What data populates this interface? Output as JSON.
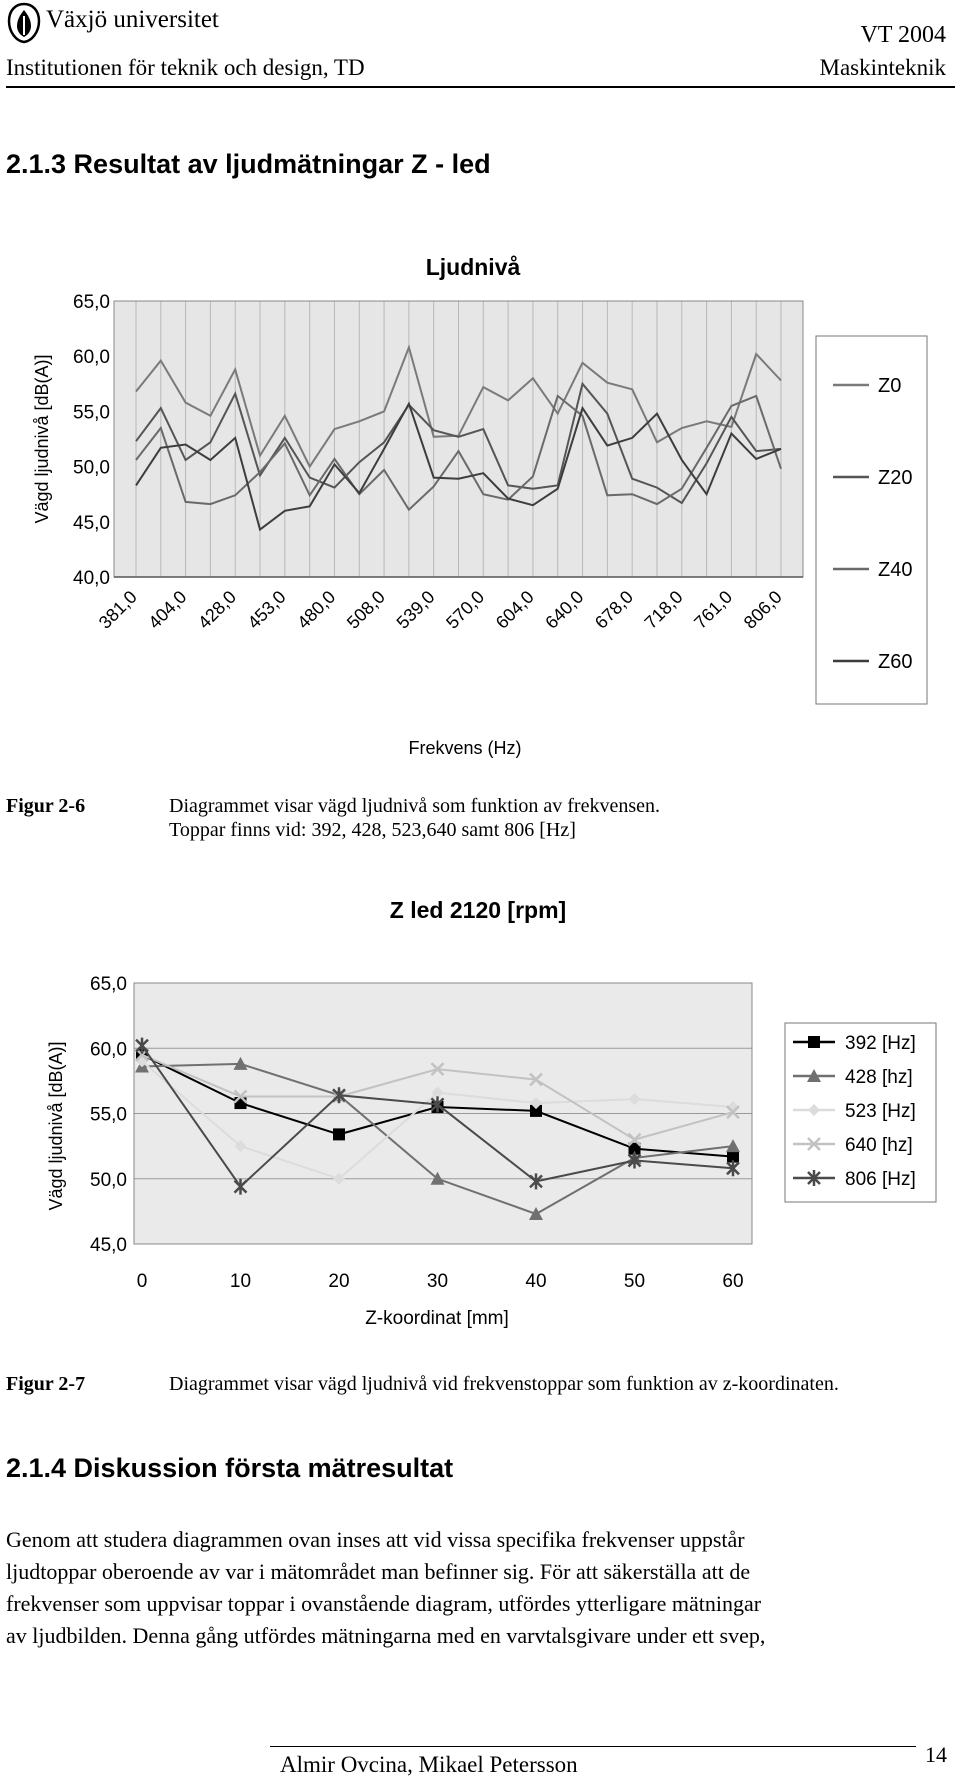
{
  "header": {
    "university": "Växjö universitet",
    "institution": "Institutionen för teknik och design, TD",
    "term": "VT 2004",
    "program": "Maskinteknik"
  },
  "section_result": {
    "title": "2.1.3 Resultat av ljudmätningar Z - led"
  },
  "figure1": {
    "label": "Figur 2-6",
    "caption_line1": "Diagrammet visar vägd ljudnivå som funktion av frekvensen.",
    "caption_line2": "Toppar finns vid: 392, 428, 523,640 samt 806 [Hz]"
  },
  "figure2": {
    "label": "Figur 2-7",
    "caption": "Diagrammet visar vägd ljudnivå vid frekvenstoppar som funktion av z-koordinaten."
  },
  "section_discussion": {
    "title": "2.1.4 Diskussion första mätresultat",
    "paragraph_lines": [
      "Genom att studera diagrammen ovan inses att vid vissa specifika frekvenser uppstår",
      "ljudtoppar oberoende av var i mätområdet man befinner sig. För att säkerställa att de",
      "frekvenser som uppvisar toppar i ovanstående diagram, utfördes ytterligare mätningar",
      "av ljudbilden. Denna gång utfördes mätningarna med en varvtalsgivare under ett svep,"
    ]
  },
  "footer": {
    "authors": "Almir Ovcina, Mikael Petersson",
    "page": "14"
  },
  "chart_data": [
    {
      "type": "line",
      "title": "Ljudnivå",
      "xlabel": "Frekvens (Hz)",
      "ylabel": "Vägd ljudnivå [dB(A)]",
      "ylim": [
        40,
        65
      ],
      "yticks": [
        "40,0",
        "45,0",
        "50,0",
        "55,0",
        "60,0",
        "65,0"
      ],
      "xticks_shown": [
        "381,0",
        "404,0",
        "428,0",
        "453,0",
        "480,0",
        "508,0",
        "539,0",
        "570,0",
        "604,0",
        "640,0",
        "678,0",
        "718,0",
        "761,0",
        "806,0"
      ],
      "x_point_count": 27,
      "grid": "vertical lines",
      "legend_position": "right",
      "series": [
        {
          "name": "Z0",
          "color": "#7a7a7a",
          "values": [
            56.8,
            59.6,
            55.8,
            54.6,
            58.8,
            51.0,
            54.6,
            50.0,
            53.4,
            54.1,
            55.0,
            60.8,
            52.7,
            52.8,
            57.2,
            56.0,
            58.0,
            54.8,
            59.4,
            57.6,
            57.0,
            52.2,
            53.5,
            54.1,
            53.6,
            60.2,
            57.8
          ]
        },
        {
          "name": "Z20",
          "color": "#555555",
          "values": [
            52.3,
            55.3,
            50.6,
            52.2,
            56.6,
            49.2,
            52.6,
            49.0,
            48.1,
            50.4,
            52.2,
            55.6,
            53.3,
            52.7,
            53.4,
            48.3,
            48.0,
            48.3,
            57.5,
            54.8,
            48.9,
            48.1,
            46.7,
            50.3,
            54.5,
            51.4,
            51.6
          ]
        },
        {
          "name": "Z40",
          "color": "#6a6a6a",
          "values": [
            50.6,
            53.5,
            46.8,
            46.6,
            47.4,
            49.5,
            52.1,
            47.4,
            50.7,
            47.5,
            49.7,
            46.1,
            48.2,
            51.4,
            47.5,
            47.0,
            49.1,
            56.4,
            54.6,
            47.4,
            47.5,
            46.6,
            48.0,
            51.7,
            55.5,
            56.4,
            49.8
          ]
        },
        {
          "name": "Z60",
          "color": "#3d3d3d",
          "values": [
            48.3,
            51.7,
            52.0,
            50.6,
            52.6,
            44.3,
            46.0,
            46.4,
            50.2,
            47.6,
            51.6,
            55.7,
            49.0,
            48.9,
            49.4,
            47.1,
            46.5,
            48.0,
            55.3,
            51.9,
            52.6,
            54.8,
            50.6,
            47.5,
            53.0,
            50.7,
            51.6
          ]
        }
      ]
    },
    {
      "type": "line",
      "title": "Z led 2120 [rpm]",
      "xlabel": "Z-koordinat [mm]",
      "ylabel": "Vägd ljudnivå [dB(A)]",
      "x": [
        0,
        10,
        20,
        30,
        40,
        50,
        60
      ],
      "xticks": [
        "0",
        "10",
        "20",
        "30",
        "40",
        "50",
        "60"
      ],
      "yticks": [
        "45,0",
        "50,0",
        "55,0",
        "60,0",
        "65,0"
      ],
      "ylim": [
        45,
        65
      ],
      "grid": "horizontal lines",
      "legend_position": "right",
      "series": [
        {
          "name": "392 [Hz]",
          "color": "#000000",
          "marker": "square",
          "values": [
            59.5,
            55.8,
            53.4,
            55.5,
            55.2,
            52.3,
            51.7
          ]
        },
        {
          "name": "428 [hz]",
          "color": "#707070",
          "marker": "triangle",
          "values": [
            58.6,
            58.8,
            56.4,
            50.0,
            47.3,
            51.6,
            52.5
          ]
        },
        {
          "name": "523 [Hz]",
          "color": "#dcdcdc",
          "marker": "diamond",
          "values": [
            59.0,
            52.5,
            50.0,
            56.6,
            55.8,
            56.1,
            55.5
          ]
        },
        {
          "name": "640 [hz]",
          "color": "#c2c2c2",
          "marker": "x",
          "values": [
            59.5,
            56.3,
            56.3,
            58.4,
            57.6,
            53.0,
            55.1
          ]
        },
        {
          "name": "806 [Hz]",
          "color": "#4a4a4a",
          "marker": "asterisk",
          "values": [
            60.2,
            49.4,
            56.4,
            55.7,
            49.8,
            51.4,
            50.8
          ]
        }
      ]
    }
  ]
}
